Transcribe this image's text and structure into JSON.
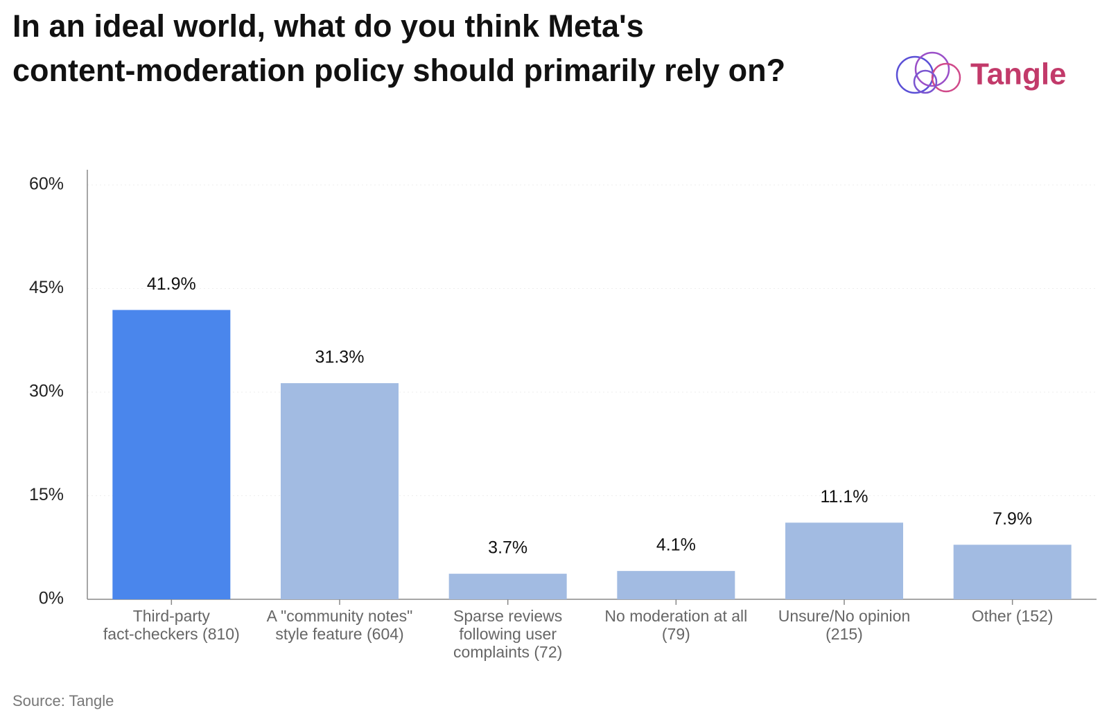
{
  "chart_data": {
    "type": "bar",
    "title": "In an ideal world, what do you think Meta's content-moderation policy should primarily rely on?",
    "logo": "Tangle",
    "source": "Source: Tangle",
    "categories": [
      "Third-party fact-checkers (810)",
      "A \"community notes\" style feature (604)",
      "Sparse reviews following user complaints (72)",
      "No moderation at all (79)",
      "Unsure/No opinion (215)",
      "Other (152)"
    ],
    "values": [
      41.9,
      31.3,
      3.7,
      4.1,
      11.1,
      7.9
    ],
    "value_labels": [
      "41.9%",
      "31.3%",
      "3.7%",
      "4.1%",
      "11.1%",
      "7.9%"
    ],
    "colors": [
      "#4a86ec",
      "#a2bbe2",
      "#a2bbe2",
      "#a2bbe2",
      "#a2bbe2",
      "#a2bbe2"
    ],
    "ylim": [
      0,
      60
    ],
    "yticks": [
      {
        "value": 0,
        "label": "0%"
      },
      {
        "value": 15,
        "label": "15%"
      },
      {
        "value": 30,
        "label": "30%"
      },
      {
        "value": 45,
        "label": "45%"
      },
      {
        "value": 60,
        "label": "60%"
      }
    ],
    "grid": true
  }
}
